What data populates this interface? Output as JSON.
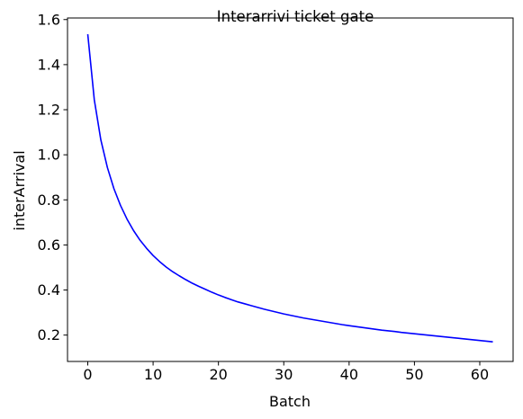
{
  "chart_data": {
    "type": "line",
    "title": "Interarrivi ticket gate",
    "xlabel": "Batch",
    "ylabel": "interArrival",
    "xlim": [
      -3.1,
      65.1
    ],
    "ylim": [
      0.083,
      1.607
    ],
    "xticks": [
      0,
      10,
      20,
      30,
      40,
      50,
      60
    ],
    "yticks": [
      0.2,
      0.4,
      0.6,
      0.8,
      1.0,
      1.2,
      1.4,
      1.6
    ],
    "xtick_labels": [
      "0",
      "10",
      "20",
      "30",
      "40",
      "50",
      "60"
    ],
    "ytick_labels": [
      "0.2",
      "0.4",
      "0.6",
      "0.8",
      "1.0",
      "1.2",
      "1.4",
      "1.6"
    ],
    "grid": false,
    "series": [
      {
        "color": "#0000ff",
        "x": [
          0,
          1,
          2,
          3,
          4,
          5,
          6,
          7,
          8,
          9,
          10,
          11,
          12,
          13,
          14,
          15,
          16,
          17,
          18,
          19,
          20,
          21,
          22,
          23,
          24,
          25,
          26,
          27,
          28,
          29,
          30,
          31,
          32,
          33,
          34,
          35,
          36,
          37,
          38,
          39,
          40,
          41,
          42,
          43,
          44,
          45,
          46,
          47,
          48,
          49,
          50,
          51,
          52,
          53,
          54,
          55,
          56,
          57,
          58,
          59,
          60,
          61,
          62
        ],
        "values": [
          1.535,
          1.244,
          1.066,
          0.944,
          0.85,
          0.776,
          0.715,
          0.664,
          0.621,
          0.585,
          0.553,
          0.526,
          0.502,
          0.481,
          0.463,
          0.446,
          0.43,
          0.416,
          0.403,
          0.39,
          0.378,
          0.367,
          0.357,
          0.347,
          0.339,
          0.331,
          0.323,
          0.315,
          0.308,
          0.301,
          0.294,
          0.288,
          0.282,
          0.276,
          0.271,
          0.266,
          0.261,
          0.256,
          0.251,
          0.246,
          0.242,
          0.238,
          0.234,
          0.23,
          0.226,
          0.222,
          0.219,
          0.216,
          0.212,
          0.209,
          0.206,
          0.203,
          0.2,
          0.197,
          0.194,
          0.191,
          0.188,
          0.185,
          0.182,
          0.179,
          0.176,
          0.173,
          0.17
        ]
      }
    ]
  }
}
